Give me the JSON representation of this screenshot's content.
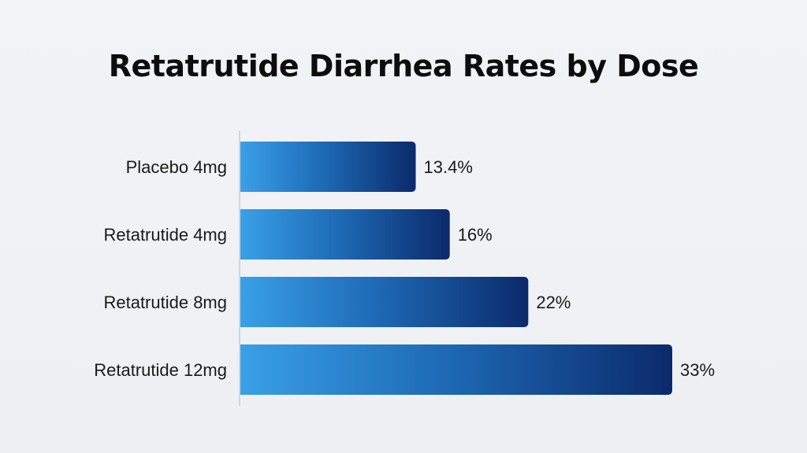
{
  "chart_data": {
    "type": "bar",
    "orientation": "horizontal",
    "title": "Retatrutide Diarrhea Rates by Dose",
    "categories": [
      "Placebo 4mg",
      "Retatrutide 4mg",
      "Retatrutide 8mg",
      "Retatrutide 12mg"
    ],
    "values": [
      13.4,
      16,
      22,
      33
    ],
    "value_labels": [
      "13.4%",
      "16%",
      "22%",
      "33%"
    ],
    "xlabel": "",
    "ylabel": "",
    "xlim": [
      0,
      36
    ],
    "grid": false,
    "legend": "none",
    "colors": {
      "bar_gradient_start": "#3aa0e6",
      "bar_gradient_mid": "#1f6cb8",
      "bar_gradient_end": "#0b2a6b",
      "axis": "#c9ccd2",
      "text": "#1a1a1a"
    }
  }
}
